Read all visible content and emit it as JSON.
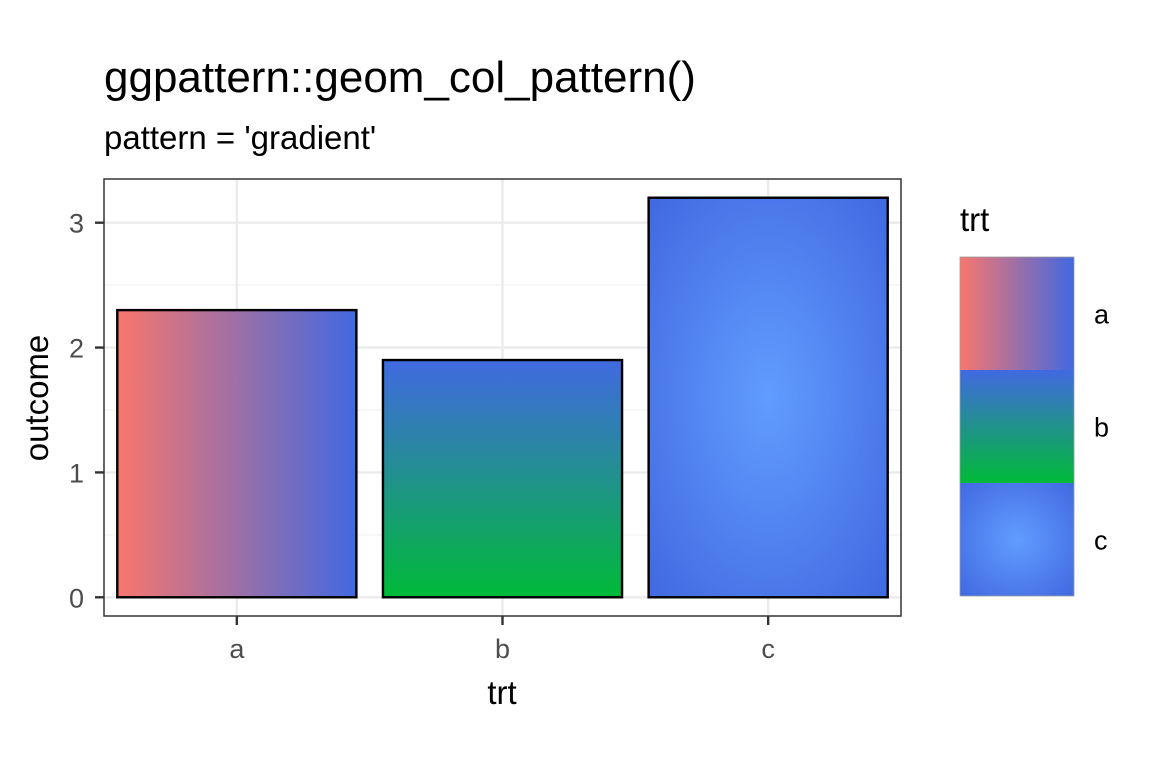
{
  "chart_data": {
    "type": "bar",
    "title": "ggpattern::geom_col_pattern()",
    "subtitle": "pattern = 'gradient'",
    "xlabel": "trt",
    "ylabel": "outcome",
    "categories": [
      "a",
      "b",
      "c"
    ],
    "values": [
      2.3,
      1.9,
      3.2
    ],
    "ylim": [
      -0.15,
      3.35
    ],
    "yticks": [
      0,
      1,
      2,
      3
    ],
    "grid": true,
    "legend": {
      "title": "trt",
      "placement": "right",
      "entries": [
        "a",
        "b",
        "c"
      ]
    },
    "fills": [
      {
        "type": "linear-horizontal",
        "from": "#F8766D",
        "to": "#4169E1"
      },
      {
        "type": "linear-vertical",
        "from": "#00BA38",
        "to": "#4169E1"
      },
      {
        "type": "radial",
        "center": "#619CFF",
        "edge": "#4169E1"
      }
    ]
  }
}
